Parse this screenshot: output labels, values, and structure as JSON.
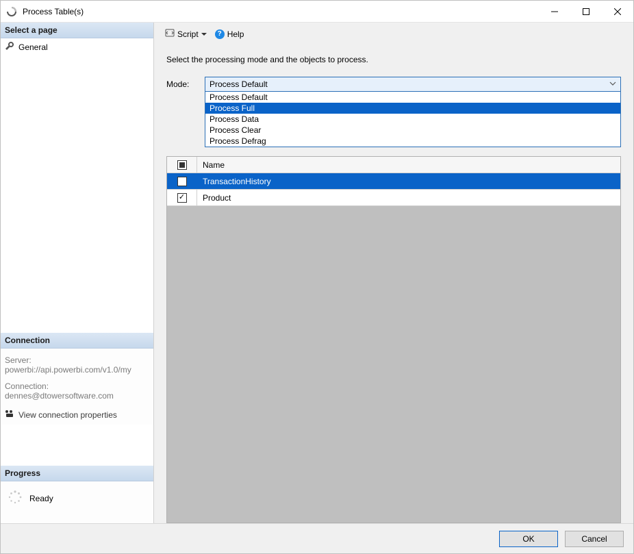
{
  "window": {
    "title": "Process Table(s)"
  },
  "sidebar": {
    "pages_header": "Select a page",
    "general_label": "General",
    "connection_header": "Connection",
    "server_label": "Server:",
    "server_value": "powerbi://api.powerbi.com/v1.0/my",
    "conn_label": "Connection:",
    "conn_value": "dennes@dtowersoftware.com",
    "view_props": "View connection properties",
    "progress_header": "Progress",
    "progress_status": "Ready"
  },
  "toolbar": {
    "script_label": "Script",
    "help_label": "Help"
  },
  "content": {
    "description": "Select the processing mode and the objects to process.",
    "mode_label": "Mode:",
    "combo_selected": "Process Default",
    "dropdown_options": [
      "Process Default",
      "Process Full",
      "Process Data",
      "Process Clear",
      "Process Defrag"
    ],
    "dropdown_highlight_index": 1,
    "grid_header": "Name",
    "rows": [
      {
        "name": "TransactionHistory",
        "checked": false,
        "selected": true
      },
      {
        "name": "Product",
        "checked": true,
        "selected": false
      }
    ]
  },
  "footer": {
    "ok": "OK",
    "cancel": "Cancel"
  },
  "colors": {
    "highlight": "#0a63c8",
    "combo_border": "#2b6fb6",
    "combo_bg": "#e6f0fb",
    "grid_bg": "#bfbfbf"
  }
}
